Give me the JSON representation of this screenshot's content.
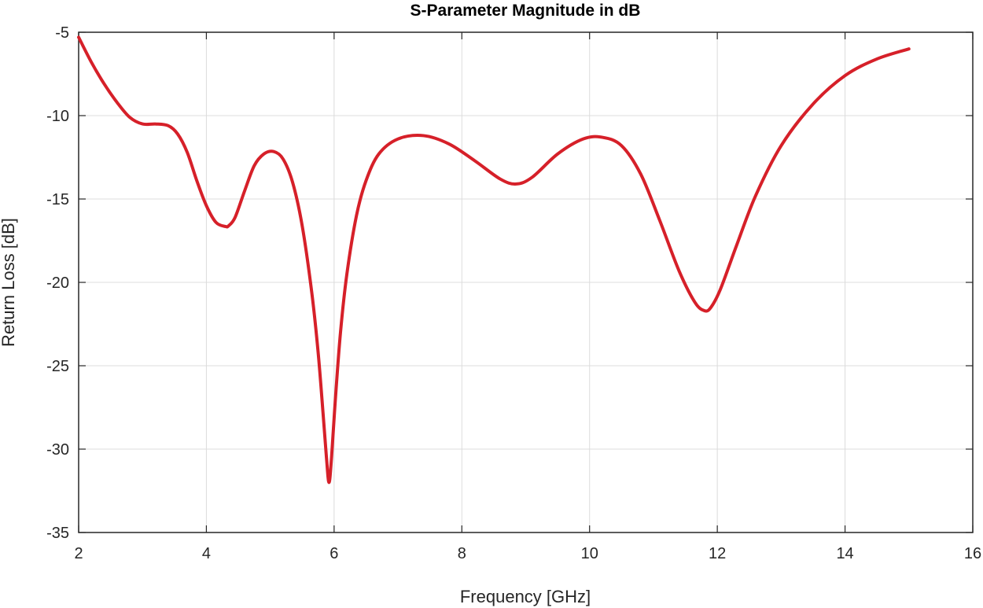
{
  "chart_data": {
    "type": "line",
    "title": "S-Parameter Magnitude in dB",
    "xlabel": "Frequency [GHz]",
    "ylabel": "Return Loss [dB]",
    "xlim": [
      2,
      16
    ],
    "ylim": [
      -35,
      -5
    ],
    "xticks": [
      2,
      4,
      6,
      8,
      10,
      12,
      14,
      16
    ],
    "yticks": [
      -5,
      -10,
      -15,
      -20,
      -25,
      -30,
      -35
    ],
    "grid": true,
    "colors": {
      "line": "#d62029",
      "grid": "#dcdcdc",
      "axis": "#262626"
    },
    "series": [
      {
        "x": [
          2.0,
          2.2,
          2.4,
          2.6,
          2.8,
          3.0,
          3.2,
          3.4,
          3.55,
          3.7,
          3.85,
          4.0,
          4.15,
          4.3,
          4.35,
          4.45,
          4.6,
          4.75,
          4.9,
          5.05,
          5.2,
          5.35,
          5.5,
          5.65,
          5.75,
          5.83,
          5.88,
          5.92,
          5.96,
          6.02,
          6.1,
          6.2,
          6.35,
          6.5,
          6.7,
          7.0,
          7.4,
          7.8,
          8.2,
          8.6,
          8.85,
          9.1,
          9.5,
          9.9,
          10.2,
          10.5,
          10.8,
          11.1,
          11.4,
          11.65,
          11.8,
          11.9,
          12.05,
          12.3,
          12.6,
          13.0,
          13.5,
          14.0,
          14.5,
          15.0
        ],
        "y": [
          -5.3,
          -6.8,
          -8.1,
          -9.2,
          -10.1,
          -10.5,
          -10.5,
          -10.6,
          -11.1,
          -12.2,
          -13.9,
          -15.4,
          -16.4,
          -16.65,
          -16.6,
          -16.1,
          -14.5,
          -13.0,
          -12.3,
          -12.15,
          -12.6,
          -14.0,
          -16.6,
          -20.6,
          -24.2,
          -28.0,
          -30.5,
          -32.0,
          -30.5,
          -27.0,
          -23.0,
          -19.5,
          -16.0,
          -13.9,
          -12.3,
          -11.4,
          -11.2,
          -11.7,
          -12.7,
          -13.8,
          -14.1,
          -13.7,
          -12.3,
          -11.4,
          -11.3,
          -11.8,
          -13.5,
          -16.3,
          -19.3,
          -21.2,
          -21.7,
          -21.5,
          -20.4,
          -17.8,
          -14.8,
          -11.8,
          -9.3,
          -7.6,
          -6.6,
          -6.0
        ]
      }
    ]
  }
}
